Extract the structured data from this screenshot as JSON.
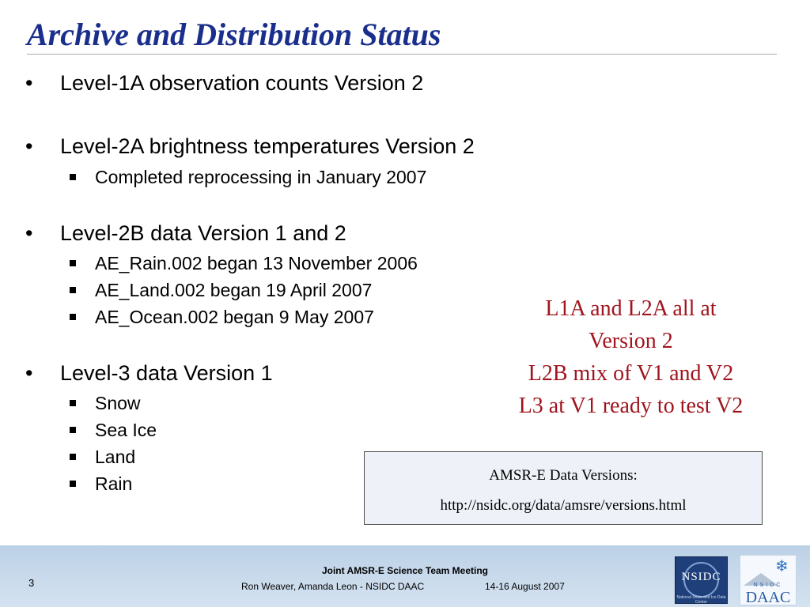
{
  "slide": {
    "title": "Archive and Distribution Status"
  },
  "bullets": [
    {
      "text": "Level-1A observation counts Version 2",
      "subitems": []
    },
    {
      "text": "Level-2A brightness temperatures Version 2",
      "subitems": [
        "Completed reprocessing in January 2007"
      ]
    },
    {
      "text": "Level-2B data Version 1 and 2",
      "subitems": [
        "AE_Rain.002 began 13 November 2006",
        "AE_Land.002 began 19 April 2007",
        "AE_Ocean.002 began 9 May 2007"
      ]
    },
    {
      "text": "Level-3 data Version 1",
      "subitems": [
        "Snow",
        "Sea Ice",
        "Land",
        "Rain"
      ]
    }
  ],
  "bullet_glyph": "•",
  "callout": {
    "lines": [
      "L1A and L2A all at",
      "Version 2",
      "L2B mix of V1 and V2",
      "L3 at V1 ready to test V2"
    ],
    "color": "#a0141e"
  },
  "link_box": {
    "label": "AMSR-E Data Versions:",
    "url": "http://nsidc.org/data/amsre/versions.html"
  },
  "footer": {
    "slide_number": "3",
    "meeting": "Joint AMSR-E Science Team Meeting",
    "authors": "Ron Weaver, Amanda Leon - NSIDC DAAC",
    "date": "14-16 August 2007",
    "logo1_text": "NSIDC",
    "logo1_subtext": "National Snow and Ice Data Center",
    "logo2_top": "NSIDC",
    "logo2_text": "DAAC",
    "logo2_icon": "snowflake-icon",
    "snowflake_glyph": "❄"
  },
  "colors": {
    "title": "#1a2f8c",
    "footer_band": "#bcd1e7"
  }
}
